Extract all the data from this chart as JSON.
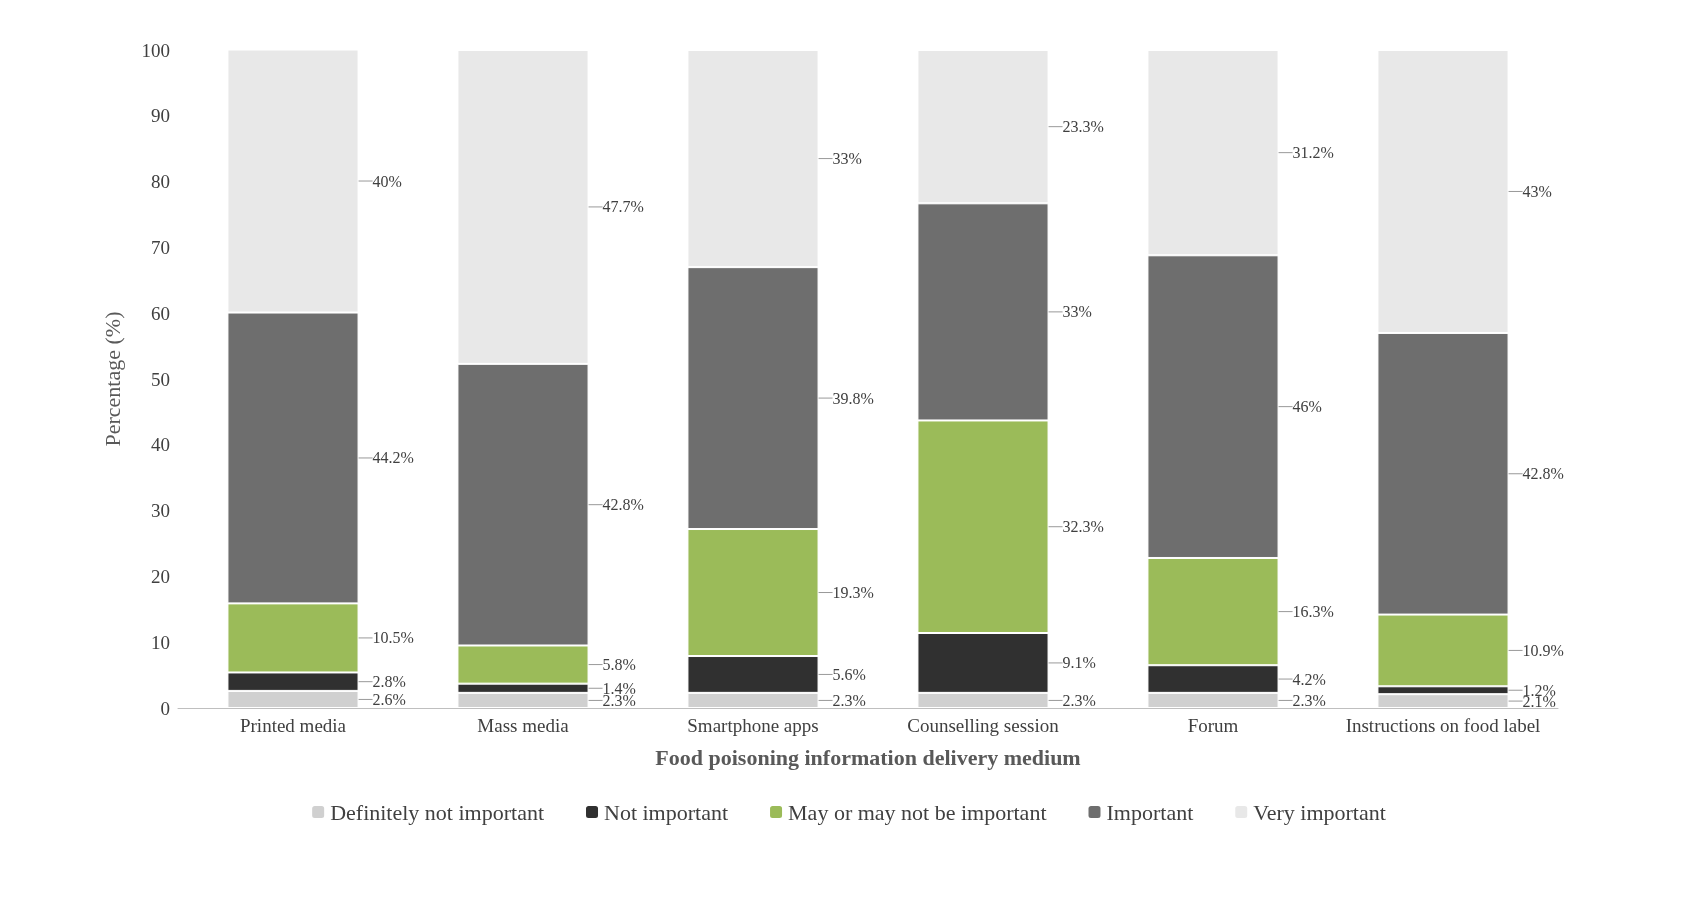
{
  "chart_data": {
    "type": "bar",
    "stacked": true,
    "xlabel": "Food poisoning information delivery medium",
    "ylabel": "Percentage (%)",
    "categories": [
      "Printed media",
      "Mass media",
      "Smartphone apps",
      "Counselling session",
      "Forum",
      "Instructions on food label"
    ],
    "ylim": [
      0,
      100
    ],
    "yticks": [
      0,
      10,
      20,
      30,
      40,
      50,
      60,
      70,
      80,
      90,
      100
    ],
    "grid": false,
    "legend": "bottom",
    "series": [
      {
        "name": "Definitely not important",
        "color": "#d0d0d0",
        "values": [
          2.6,
          2.3,
          2.3,
          2.3,
          2.3,
          2.1
        ],
        "value_labels": [
          "2.6%",
          "2.3%",
          "2.3%",
          "2.3%",
          "2.3%",
          "2.1%"
        ]
      },
      {
        "name": "Not important",
        "color": "#303030",
        "values": [
          2.8,
          1.4,
          5.6,
          9.1,
          4.2,
          1.2
        ],
        "value_labels": [
          "2.8%",
          "1.4%",
          "5.6%",
          "9.1%",
          "4.2%",
          "1.2%"
        ]
      },
      {
        "name": "May or may not be important",
        "color": "#9bbb59",
        "values": [
          10.5,
          5.8,
          19.3,
          32.3,
          16.3,
          10.9
        ],
        "value_labels": [
          "10.5%",
          "5.8%",
          "19.3%",
          "32.3%",
          "16.3%",
          "10.9%"
        ]
      },
      {
        "name": "Important",
        "color": "#6e6e6e",
        "values": [
          44.2,
          42.8,
          39.8,
          33,
          46,
          42.8
        ],
        "value_labels": [
          "44.2%",
          "42.8%",
          "39.8%",
          "33%",
          "46%",
          "42.8%"
        ]
      },
      {
        "name": "Very important",
        "color": "#e8e8e8",
        "values": [
          40,
          47.7,
          33,
          23.3,
          31.2,
          43
        ],
        "value_labels": [
          "40%",
          "47.7%",
          "33%",
          "23.3%",
          "31.2%",
          "43%"
        ]
      }
    ]
  }
}
